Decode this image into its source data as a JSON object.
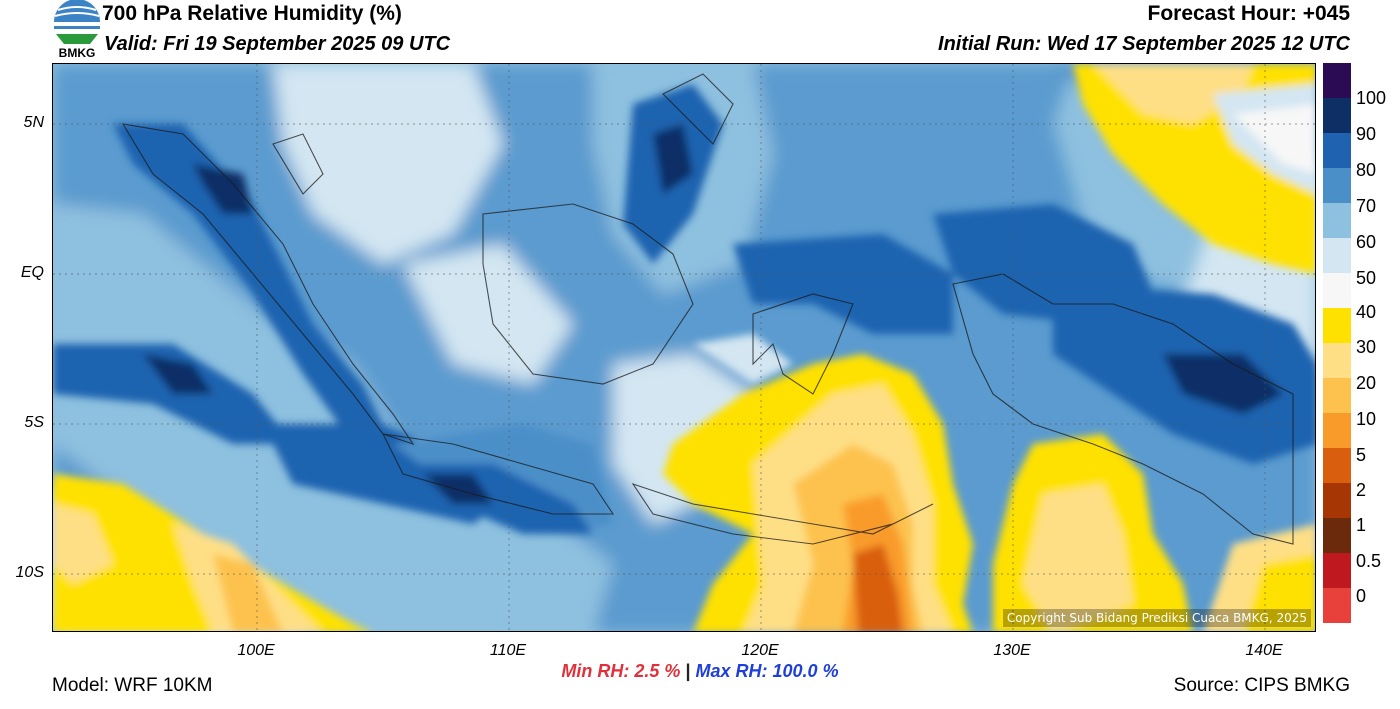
{
  "header": {
    "title": "700 hPa Relative Humidity (%)",
    "valid": "Valid: Fri 19 September 2025 09 UTC",
    "forecast_hour": "Forecast Hour: +045",
    "initial_run": "Initial Run: Wed 17 September 2025 12 UTC",
    "logo_text": "BMKG"
  },
  "map": {
    "lat_labels": [
      "5N",
      "EQ",
      "5S",
      "10S"
    ],
    "lon_labels": [
      "100E",
      "110E",
      "120E",
      "130E",
      "140E"
    ],
    "copyright": "Copyright Sub Bidang Prediksi Cuaca BMKG, 2025"
  },
  "colorbar": {
    "labels": [
      "100",
      "90",
      "80",
      "70",
      "60",
      "50",
      "40",
      "30",
      "20",
      "10",
      "5",
      "2",
      "1",
      "0.5",
      "0"
    ],
    "colors": [
      "#2b0b54",
      "#0d2f66",
      "#1f63b0",
      "#4b8fc9",
      "#8ec0df",
      "#d3e6f2",
      "#f7f7f7",
      "#ffe100",
      "#fedf86",
      "#fdc24e",
      "#f99b2a",
      "#d95f0e",
      "#a63603",
      "#6b2a0b",
      "#c0181f",
      "#e8403a"
    ]
  },
  "stats": {
    "min_rh": "Min RH:   2.5 %",
    "separator": "|",
    "max_rh": "Max RH: 100.0 %"
  },
  "footer": {
    "model": "Model: WRF 10KM",
    "source": "Source: CIPS BMKG"
  }
}
